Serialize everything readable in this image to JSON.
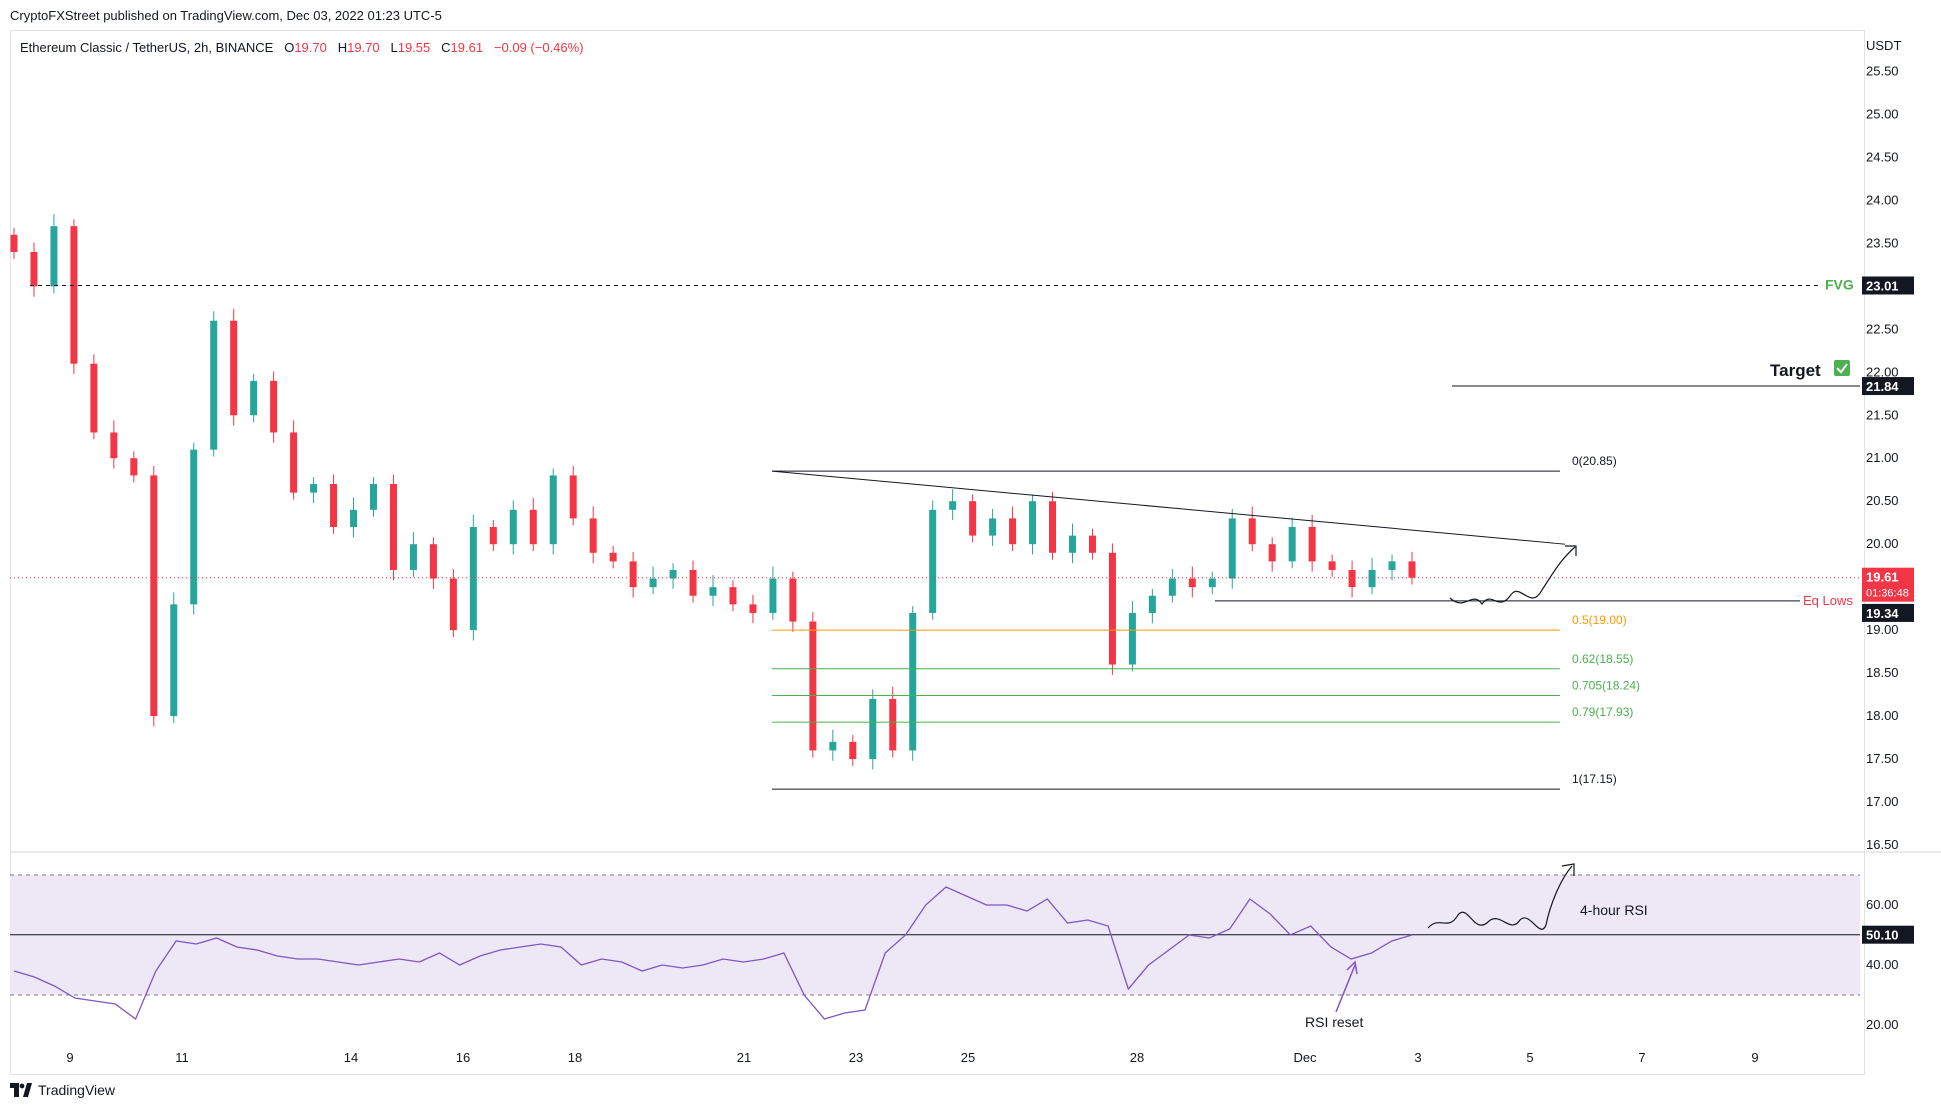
{
  "header": {
    "publisher_text": "CryptoFXStreet published on TradingView.com, Dec 03, 2022 01:23 UTC-5"
  },
  "legend": {
    "symbol": "Ethereum Classic / TetherUS, 2h, BINANCE",
    "o_label": "O",
    "o_value": "19.70",
    "h_label": "H",
    "h_value": "19.70",
    "l_label": "L",
    "l_value": "19.55",
    "c_label": "C",
    "c_value": "19.61",
    "change": "−0.09 (−0.46%)"
  },
  "footer": {
    "brand": "TradingView",
    "logo_icon": "tradingview-logo-icon"
  },
  "colors": {
    "bull": "#26a69a",
    "bear": "#f23645",
    "rsi_line": "#7e57c2",
    "rsi_band": "#ede7f6",
    "fib_05": "#ff9800",
    "fib_green": "#4caf50",
    "fvg": "#4caf50",
    "eq_lows": "#f23645"
  },
  "chart_data": [
    {
      "type": "candlestick",
      "currency": "USDT",
      "ylim": [
        16.5,
        25.75
      ],
      "yticks": [
        "16.50",
        "17.00",
        "17.50",
        "18.00",
        "18.50",
        "19.00",
        "19.50",
        "20.00",
        "20.50",
        "21.00",
        "21.50",
        "22.00",
        "22.50",
        "23.00",
        "23.50",
        "24.00",
        "24.50",
        "25.00",
        "25.50"
      ],
      "xticks": [
        "9",
        "11",
        "14",
        "16",
        "18",
        "21",
        "23",
        "25",
        "28",
        "Dec",
        "3",
        "5",
        "7",
        "9"
      ],
      "close_path": [
        23.4,
        23.0,
        23.7,
        22.1,
        21.3,
        21.0,
        20.8,
        18.0,
        19.3,
        21.1,
        22.6,
        21.5,
        21.9,
        21.3,
        20.6,
        20.7,
        20.2,
        20.4,
        20.7,
        19.7,
        20.0,
        19.6,
        19.0,
        20.2,
        20.0,
        20.4,
        20.0,
        20.8,
        20.3,
        19.9,
        19.8,
        19.5,
        19.6,
        19.7,
        19.4,
        19.5,
        19.3,
        19.2,
        19.6,
        19.1,
        17.6,
        17.7,
        17.5,
        18.2,
        17.6,
        19.2,
        20.4,
        20.5,
        20.1,
        20.3,
        20.0,
        20.5,
        19.9,
        20.1,
        19.9,
        18.6,
        19.2,
        19.4,
        19.6,
        19.5,
        19.6,
        20.3,
        20.0,
        19.8,
        20.2,
        19.8,
        19.7,
        19.5,
        19.7,
        19.8,
        19.61
      ],
      "last_price": "19.61",
      "countdown": "01:36:48",
      "levels": [
        {
          "label": "FVG",
          "price": "23.01",
          "style": "dashed"
        },
        {
          "label": "Target",
          "price": "21.84",
          "style": "solid"
        },
        {
          "label": "Eq Lows",
          "price": "19.34",
          "style": "solid"
        }
      ],
      "fibonacci": [
        {
          "label": "0(20.85)",
          "value": 20.85
        },
        {
          "label": "0.5(19.00)",
          "value": 19.0
        },
        {
          "label": "0.62(18.55)",
          "value": 18.55
        },
        {
          "label": "0.705(18.24)",
          "value": 18.24
        },
        {
          "label": "0.79(17.93)",
          "value": 17.93
        },
        {
          "label": "1(17.15)",
          "value": 17.15
        }
      ],
      "trendline": {
        "from": 20.85,
        "to": 20.0
      }
    },
    {
      "type": "line",
      "name": "4-hour RSI",
      "ylim": [
        15,
        75
      ],
      "yticks": [
        "20.00",
        "40.00",
        "60.00"
      ],
      "band": [
        30,
        70
      ],
      "midline": "50.10",
      "values": [
        38,
        36,
        33,
        29,
        28,
        27,
        22,
        38,
        48,
        47,
        49,
        46,
        45,
        43,
        42,
        42,
        41,
        40,
        41,
        42,
        41,
        44,
        40,
        43,
        45,
        46,
        47,
        46,
        40,
        42,
        41,
        38,
        40,
        39,
        40,
        42,
        41,
        42,
        44,
        30,
        22,
        24,
        25,
        44,
        50,
        60,
        66,
        63,
        60,
        60,
        58,
        62,
        54,
        55,
        53,
        32,
        40,
        45,
        50,
        49,
        52,
        62,
        57,
        50,
        53,
        46,
        42,
        44,
        48,
        50
      ],
      "annotation": "RSI reset"
    }
  ]
}
